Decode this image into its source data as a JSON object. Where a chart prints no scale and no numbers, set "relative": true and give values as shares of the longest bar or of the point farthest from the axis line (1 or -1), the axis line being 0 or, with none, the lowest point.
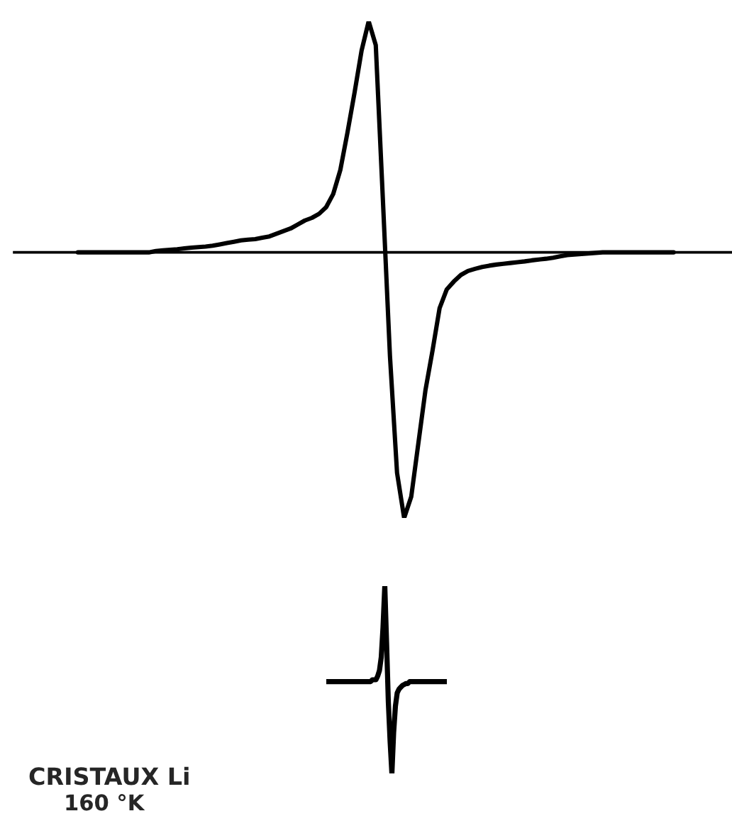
{
  "chart_data": [
    {
      "type": "line",
      "relative": true,
      "categories": [
        null,
        null,
        null,
        null,
        null,
        null,
        null,
        null,
        null,
        null,
        null,
        null,
        null,
        null,
        null,
        null,
        null,
        null,
        null,
        null,
        null,
        null,
        null,
        null,
        null,
        null,
        null,
        null,
        null,
        null,
        null,
        null,
        null,
        null,
        null,
        null,
        null,
        null,
        null,
        null,
        null,
        null,
        null,
        null,
        null,
        null,
        null,
        null,
        null,
        null,
        null,
        null,
        null,
        null,
        null,
        null,
        null,
        null,
        null,
        null,
        null,
        null,
        null,
        null,
        null,
        null,
        null,
        null,
        null,
        null,
        null,
        null,
        null,
        null,
        null,
        null,
        null,
        null,
        null,
        null,
        null,
        null,
        null,
        null,
        null
      ],
      "series": [
        {
          "color": "#000000",
          "values": [
            0,
            0,
            0,
            0,
            0,
            0,
            0,
            0,
            0,
            0,
            0,
            0.005,
            0.008,
            0.01,
            0.012,
            0.015,
            0.018,
            0.02,
            0.022,
            0.025,
            0.03,
            0.035,
            0.04,
            0.045,
            0.048,
            0.05,
            0.055,
            0.06,
            0.07,
            0.08,
            0.09,
            0.105,
            0.12,
            0.13,
            0.145,
            0.17,
            0.22,
            0.31,
            0.45,
            0.6,
            0.76,
            0.87,
            0.78,
            0.2,
            -0.39,
            -0.83,
            -1.0,
            -0.92,
            -0.72,
            -0.52,
            -0.37,
            -0.21,
            -0.14,
            -0.11,
            -0.085,
            -0.07,
            -0.062,
            -0.055,
            -0.05,
            -0.046,
            -0.043,
            -0.04,
            -0.037,
            -0.034,
            -0.03,
            -0.027,
            -0.024,
            -0.02,
            -0.015,
            -0.01,
            -0.008,
            -0.006,
            -0.004,
            -0.002,
            0,
            0,
            0,
            0,
            0,
            0,
            0,
            0,
            0,
            0,
            0
          ]
        }
      ]
    },
    {
      "type": "line",
      "relative": true,
      "categories": [
        null,
        null,
        null,
        null,
        null,
        null,
        null,
        null,
        null,
        null,
        null,
        null,
        null,
        null,
        null,
        null,
        null,
        null,
        null,
        null,
        null,
        null,
        null,
        null,
        null,
        null,
        null,
        null,
        null,
        null,
        null,
        null,
        null,
        null,
        null,
        null,
        null,
        null,
        null,
        null,
        null,
        null,
        null,
        null,
        null,
        null,
        null,
        null,
        null,
        null,
        null,
        null,
        null,
        null,
        null,
        null,
        null,
        null,
        null,
        null,
        null,
        null,
        null,
        null,
        null,
        null,
        null,
        null,
        null
      ],
      "series": [
        {
          "color": "#000000",
          "values": [
            0.49,
            0.49,
            0.49,
            0.49,
            0.49,
            0.49,
            0.49,
            0.49,
            0.49,
            0.49,
            0.49,
            0.49,
            0.49,
            0.49,
            0.49,
            0.49,
            0.49,
            0.49,
            0.49,
            0.49,
            0.49,
            0.49,
            0.49,
            0.49,
            0.49,
            0.49,
            0.5,
            0.5,
            0.5,
            0.52,
            0.55,
            0.62,
            0.78,
            1.0,
            0.7,
            0.38,
            0.17,
            0.0,
            0.22,
            0.36,
            0.43,
            0.45,
            0.46,
            0.47,
            0.475,
            0.48,
            0.48,
            0.49,
            0.49,
            0.49,
            0.49,
            0.49,
            0.49,
            0.49,
            0.49,
            0.49,
            0.49,
            0.49,
            0.49,
            0.49,
            0.49,
            0.49,
            0.49,
            0.49,
            0.49,
            0.49,
            0.49,
            0.49,
            0.49
          ]
        }
      ],
      "annotations": [
        "CRISTAUX Li",
        "160 °K"
      ]
    }
  ]
}
